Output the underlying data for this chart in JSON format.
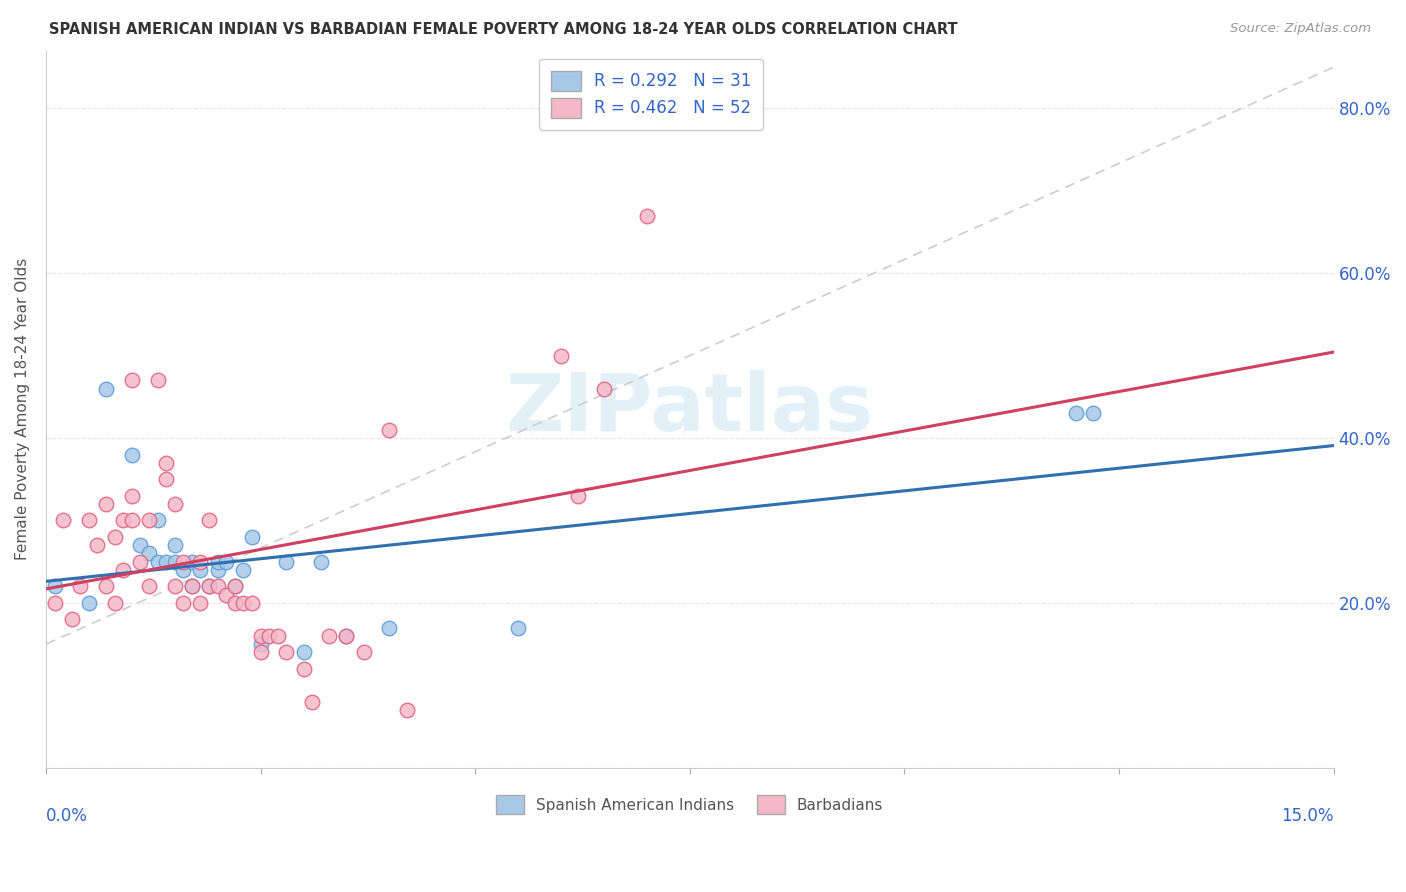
{
  "title": "SPANISH AMERICAN INDIAN VS BARBADIAN FEMALE POVERTY AMONG 18-24 YEAR OLDS CORRELATION CHART",
  "source": "Source: ZipAtlas.com",
  "ylabel": "Female Poverty Among 18-24 Year Olds",
  "legend_1_label": "R = 0.292   N = 31",
  "legend_2_label": "R = 0.462   N = 52",
  "legend_bottom_1": "Spanish American Indians",
  "legend_bottom_2": "Barbadians",
  "watermark": "ZIPatlas",
  "blue_color": "#a8c8e8",
  "blue_edge_color": "#5b9bd5",
  "pink_color": "#f4b8c8",
  "pink_edge_color": "#e06080",
  "blue_line_color": "#3070b0",
  "pink_line_color": "#d04060",
  "dashed_line_color": "#c8c8c8",
  "background_color": "#ffffff",
  "grid_color": "#e0e0e0",
  "right_label_color": "#3366cc",
  "blue_scatter_x": [
    0.001,
    0.005,
    0.007,
    0.01,
    0.011,
    0.012,
    0.013,
    0.013,
    0.014,
    0.015,
    0.015,
    0.016,
    0.017,
    0.017,
    0.018,
    0.019,
    0.02,
    0.02,
    0.021,
    0.022,
    0.023,
    0.024,
    0.025,
    0.028,
    0.03,
    0.032,
    0.035,
    0.04,
    0.055,
    0.12,
    0.122
  ],
  "blue_scatter_y": [
    0.22,
    0.2,
    0.46,
    0.38,
    0.27,
    0.26,
    0.25,
    0.3,
    0.25,
    0.25,
    0.27,
    0.24,
    0.22,
    0.25,
    0.24,
    0.22,
    0.24,
    0.25,
    0.25,
    0.22,
    0.24,
    0.28,
    0.15,
    0.25,
    0.14,
    0.25,
    0.16,
    0.17,
    0.17,
    0.43,
    0.43
  ],
  "pink_scatter_x": [
    0.001,
    0.002,
    0.003,
    0.004,
    0.005,
    0.006,
    0.007,
    0.008,
    0.009,
    0.01,
    0.01,
    0.011,
    0.012,
    0.012,
    0.013,
    0.014,
    0.014,
    0.015,
    0.015,
    0.016,
    0.016,
    0.017,
    0.018,
    0.018,
    0.019,
    0.019,
    0.02,
    0.021,
    0.022,
    0.022,
    0.023,
    0.024,
    0.025,
    0.025,
    0.026,
    0.027,
    0.028,
    0.03,
    0.031,
    0.033,
    0.035,
    0.037,
    0.04,
    0.042,
    0.06,
    0.062,
    0.065,
    0.07,
    0.007,
    0.008,
    0.009,
    0.01
  ],
  "pink_scatter_y": [
    0.2,
    0.3,
    0.18,
    0.22,
    0.3,
    0.27,
    0.22,
    0.2,
    0.3,
    0.33,
    0.47,
    0.25,
    0.3,
    0.22,
    0.47,
    0.35,
    0.37,
    0.22,
    0.32,
    0.25,
    0.2,
    0.22,
    0.25,
    0.2,
    0.22,
    0.3,
    0.22,
    0.21,
    0.2,
    0.22,
    0.2,
    0.2,
    0.14,
    0.16,
    0.16,
    0.16,
    0.14,
    0.12,
    0.08,
    0.16,
    0.16,
    0.14,
    0.41,
    0.07,
    0.5,
    0.33,
    0.46,
    0.67,
    0.32,
    0.28,
    0.24,
    0.3
  ],
  "xlim": [
    0.0,
    0.15
  ],
  "ylim": [
    0.0,
    0.87
  ],
  "yticks": [
    0.0,
    0.2,
    0.4,
    0.6,
    0.8
  ],
  "yticklabels": [
    "",
    "20.0%",
    "40.0%",
    "60.0%",
    "80.0%"
  ],
  "blue_line_x0": 0.0,
  "blue_line_y0": 0.218,
  "blue_line_x1": 0.15,
  "blue_line_y1": 0.435,
  "pink_line_x0": 0.0,
  "pink_line_y0": 0.17,
  "pink_line_x1": 0.075,
  "pink_line_y1": 0.5
}
